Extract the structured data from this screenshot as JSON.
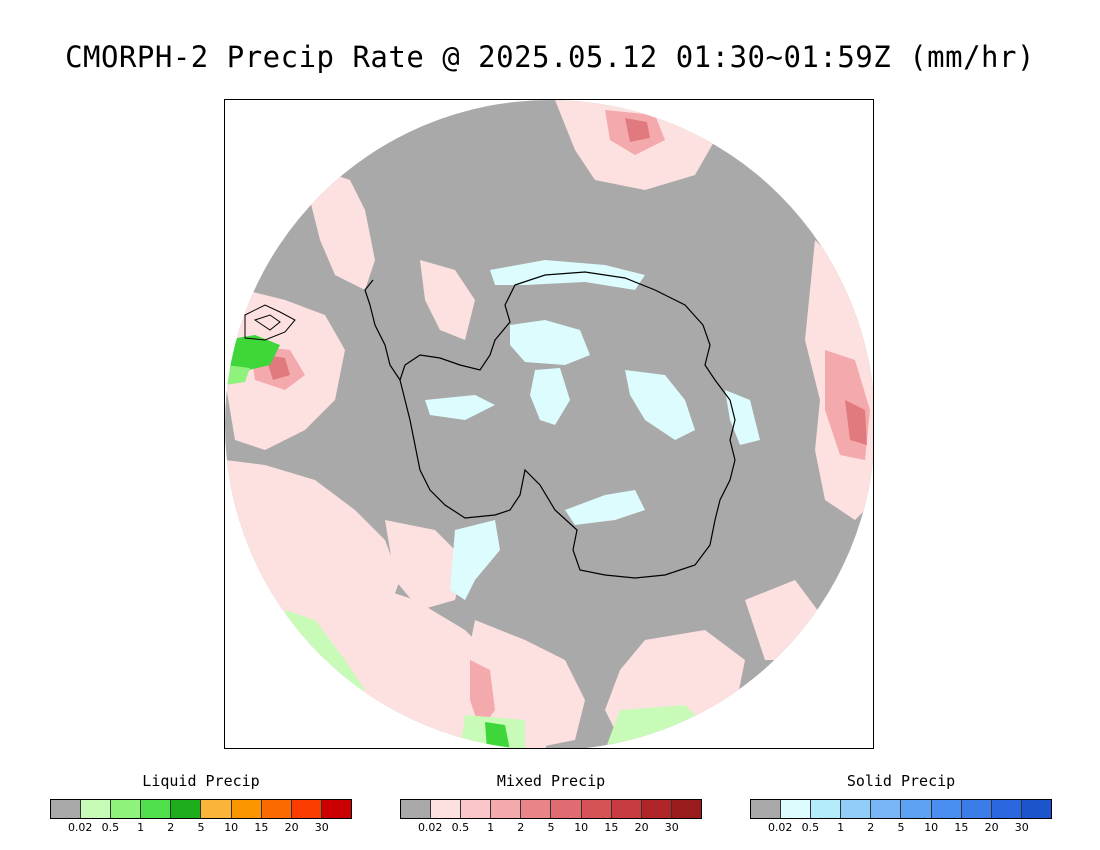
{
  "title": "CMORPH-2 Precip Rate @ 2025.05.12 01:30~01:59Z (mm/hr)",
  "map": {
    "projection": "south-polar-stereographic",
    "background_color": "#a9a9a9",
    "colors": {
      "no_data": "#a9a9a9",
      "liquid_light": "#c8fbb8",
      "liquid_mid": "#8ef27d",
      "liquid_heavy": "#3fd63a",
      "mixed_light": "#fde0e0",
      "mixed_mid": "#f4a9ad",
      "mixed_heavy": "#e07a7f",
      "solid_light": "#dcfcfd",
      "coastline": "#000000"
    }
  },
  "legends": [
    {
      "title": "Liquid Precip",
      "colors": [
        "#a9a9a9",
        "#c8fbb8",
        "#8ef27d",
        "#4fe04b",
        "#1cae1c",
        "#fbb43a",
        "#fb9600",
        "#fb6a00",
        "#fb3c00",
        "#cc0000"
      ],
      "ticks": [
        "0.02",
        "0.5",
        "1",
        "2",
        "5",
        "10",
        "15",
        "20",
        "30"
      ]
    },
    {
      "title": "Mixed Precip",
      "colors": [
        "#a9a9a9",
        "#fde0e0",
        "#fbc6c9",
        "#f4a9ad",
        "#e98589",
        "#e06b70",
        "#d55357",
        "#c63c40",
        "#b02528",
        "#9a1b1e"
      ],
      "ticks": [
        "0.02",
        "0.5",
        "1",
        "2",
        "5",
        "10",
        "15",
        "20",
        "30"
      ]
    },
    {
      "title": "Solid Precip",
      "colors": [
        "#a9a9a9",
        "#dcfcfd",
        "#b4ecfb",
        "#91cdf8",
        "#78b6f6",
        "#5ea2f3",
        "#4a8ff0",
        "#3b7ce9",
        "#2b68e0",
        "#1a55cc"
      ],
      "ticks": [
        "0.02",
        "0.5",
        "1",
        "2",
        "5",
        "10",
        "15",
        "20",
        "30"
      ]
    }
  ]
}
